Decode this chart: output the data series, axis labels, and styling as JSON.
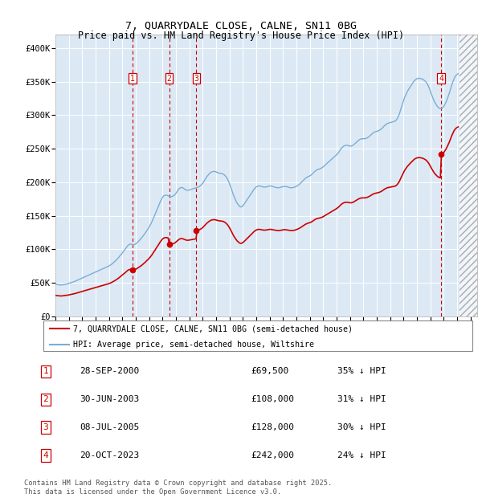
{
  "title": "7, QUARRYDALE CLOSE, CALNE, SN11 0BG",
  "subtitle": "Price paid vs. HM Land Registry's House Price Index (HPI)",
  "ylim": [
    0,
    420000
  ],
  "yticks": [
    0,
    50000,
    100000,
    150000,
    200000,
    250000,
    300000,
    350000,
    400000
  ],
  "ytick_labels": [
    "£0",
    "£50K",
    "£100K",
    "£150K",
    "£200K",
    "£250K",
    "£300K",
    "£350K",
    "£400K"
  ],
  "xlim_start": 1995.0,
  "xlim_end": 2026.5,
  "background_color": "#dce9f5",
  "hpi_color": "#7aadd4",
  "price_color": "#cc0000",
  "transactions": [
    {
      "label": "1",
      "year": 2000.75,
      "price": 69500
    },
    {
      "label": "2",
      "year": 2003.5,
      "price": 108000
    },
    {
      "label": "3",
      "year": 2005.53,
      "price": 128000
    },
    {
      "label": "4",
      "year": 2023.8,
      "price": 242000
    }
  ],
  "legend_line1": "7, QUARRYDALE CLOSE, CALNE, SN11 0BG (semi-detached house)",
  "legend_line2": "HPI: Average price, semi-detached house, Wiltshire",
  "table_rows": [
    {
      "num": "1",
      "date": "28-SEP-2000",
      "price": "£69,500",
      "hpi": "35% ↓ HPI"
    },
    {
      "num": "2",
      "date": "30-JUN-2003",
      "price": "£108,000",
      "hpi": "31% ↓ HPI"
    },
    {
      "num": "3",
      "date": "08-JUL-2005",
      "price": "£128,000",
      "hpi": "30% ↓ HPI"
    },
    {
      "num": "4",
      "date": "20-OCT-2023",
      "price": "£242,000",
      "hpi": "24% ↓ HPI"
    }
  ],
  "footer": "Contains HM Land Registry data © Crown copyright and database right 2025.\nThis data is licensed under the Open Government Licence v3.0.",
  "hpi_data": [
    [
      1995.0,
      48000
    ],
    [
      1995.08,
      47500
    ],
    [
      1995.17,
      47200
    ],
    [
      1995.25,
      47000
    ],
    [
      1995.33,
      46800
    ],
    [
      1995.42,
      46500
    ],
    [
      1995.5,
      46800
    ],
    [
      1995.58,
      47000
    ],
    [
      1995.67,
      47300
    ],
    [
      1995.75,
      47600
    ],
    [
      1995.83,
      48000
    ],
    [
      1995.92,
      48500
    ],
    [
      1996.0,
      49000
    ],
    [
      1996.08,
      49500
    ],
    [
      1996.17,
      50000
    ],
    [
      1996.25,
      50500
    ],
    [
      1996.33,
      51200
    ],
    [
      1996.42,
      51800
    ],
    [
      1996.5,
      52500
    ],
    [
      1996.58,
      53200
    ],
    [
      1996.67,
      54000
    ],
    [
      1996.75,
      54800
    ],
    [
      1996.83,
      55500
    ],
    [
      1996.92,
      56200
    ],
    [
      1997.0,
      57000
    ],
    [
      1997.08,
      57800
    ],
    [
      1997.17,
      58500
    ],
    [
      1997.25,
      59300
    ],
    [
      1997.33,
      60000
    ],
    [
      1997.42,
      60800
    ],
    [
      1997.5,
      61500
    ],
    [
      1997.58,
      62300
    ],
    [
      1997.67,
      63000
    ],
    [
      1997.75,
      63800
    ],
    [
      1997.83,
      64500
    ],
    [
      1997.92,
      65200
    ],
    [
      1998.0,
      66000
    ],
    [
      1998.08,
      66800
    ],
    [
      1998.17,
      67500
    ],
    [
      1998.25,
      68200
    ],
    [
      1998.33,
      69000
    ],
    [
      1998.42,
      69800
    ],
    [
      1998.5,
      70500
    ],
    [
      1998.58,
      71300
    ],
    [
      1998.67,
      72000
    ],
    [
      1998.75,
      72800
    ],
    [
      1998.83,
      73500
    ],
    [
      1998.92,
      74200
    ],
    [
      1999.0,
      75000
    ],
    [
      1999.08,
      76000
    ],
    [
      1999.17,
      77200
    ],
    [
      1999.25,
      78500
    ],
    [
      1999.33,
      80000
    ],
    [
      1999.42,
      81500
    ],
    [
      1999.5,
      83000
    ],
    [
      1999.58,
      84800
    ],
    [
      1999.67,
      86500
    ],
    [
      1999.75,
      88500
    ],
    [
      1999.83,
      90500
    ],
    [
      1999.92,
      92500
    ],
    [
      2000.0,
      94500
    ],
    [
      2000.08,
      96800
    ],
    [
      2000.17,
      99000
    ],
    [
      2000.25,
      101200
    ],
    [
      2000.33,
      103500
    ],
    [
      2000.42,
      105800
    ],
    [
      2000.5,
      107000
    ],
    [
      2000.58,
      107800
    ],
    [
      2000.67,
      107500
    ],
    [
      2000.75,
      107000
    ],
    [
      2000.83,
      106800
    ],
    [
      2000.92,
      107200
    ],
    [
      2001.0,
      108000
    ],
    [
      2001.08,
      109500
    ],
    [
      2001.17,
      111000
    ],
    [
      2001.25,
      112800
    ],
    [
      2001.33,
      114500
    ],
    [
      2001.42,
      116500
    ],
    [
      2001.5,
      118500
    ],
    [
      2001.58,
      120800
    ],
    [
      2001.67,
      123000
    ],
    [
      2001.75,
      125500
    ],
    [
      2001.83,
      128000
    ],
    [
      2001.92,
      130500
    ],
    [
      2002.0,
      133000
    ],
    [
      2002.08,
      136000
    ],
    [
      2002.17,
      139500
    ],
    [
      2002.25,
      143000
    ],
    [
      2002.33,
      147000
    ],
    [
      2002.42,
      151000
    ],
    [
      2002.5,
      155000
    ],
    [
      2002.58,
      159000
    ],
    [
      2002.67,
      163000
    ],
    [
      2002.75,
      167000
    ],
    [
      2002.83,
      171000
    ],
    [
      2002.92,
      174500
    ],
    [
      2003.0,
      177500
    ],
    [
      2003.08,
      179500
    ],
    [
      2003.17,
      180500
    ],
    [
      2003.25,
      180800
    ],
    [
      2003.33,
      180500
    ],
    [
      2003.42,
      179800
    ],
    [
      2003.5,
      179000
    ],
    [
      2003.58,
      178500
    ],
    [
      2003.67,
      178500
    ],
    [
      2003.75,
      179000
    ],
    [
      2003.83,
      180000
    ],
    [
      2003.92,
      181500
    ],
    [
      2004.0,
      183500
    ],
    [
      2004.08,
      186000
    ],
    [
      2004.17,
      188500
    ],
    [
      2004.25,
      190500
    ],
    [
      2004.33,
      191800
    ],
    [
      2004.42,
      192200
    ],
    [
      2004.5,
      191800
    ],
    [
      2004.58,
      190800
    ],
    [
      2004.67,
      189500
    ],
    [
      2004.75,
      188500
    ],
    [
      2004.83,
      188000
    ],
    [
      2004.92,
      188000
    ],
    [
      2005.0,
      188500
    ],
    [
      2005.08,
      189000
    ],
    [
      2005.17,
      189500
    ],
    [
      2005.25,
      190000
    ],
    [
      2005.33,
      190500
    ],
    [
      2005.42,
      191000
    ],
    [
      2005.5,
      191500
    ],
    [
      2005.58,
      192000
    ],
    [
      2005.67,
      192800
    ],
    [
      2005.75,
      193800
    ],
    [
      2005.83,
      195000
    ],
    [
      2005.92,
      196500
    ],
    [
      2006.0,
      198500
    ],
    [
      2006.08,
      201000
    ],
    [
      2006.17,
      203800
    ],
    [
      2006.25,
      206500
    ],
    [
      2006.33,
      209000
    ],
    [
      2006.42,
      211000
    ],
    [
      2006.5,
      213000
    ],
    [
      2006.58,
      214500
    ],
    [
      2006.67,
      215500
    ],
    [
      2006.75,
      216000
    ],
    [
      2006.83,
      216200
    ],
    [
      2006.92,
      216000
    ],
    [
      2007.0,
      215500
    ],
    [
      2007.08,
      214800
    ],
    [
      2007.17,
      214000
    ],
    [
      2007.25,
      213500
    ],
    [
      2007.33,
      213200
    ],
    [
      2007.42,
      213000
    ],
    [
      2007.5,
      212500
    ],
    [
      2007.58,
      211500
    ],
    [
      2007.67,
      210000
    ],
    [
      2007.75,
      208000
    ],
    [
      2007.83,
      205500
    ],
    [
      2007.92,
      202000
    ],
    [
      2008.0,
      198000
    ],
    [
      2008.08,
      193500
    ],
    [
      2008.17,
      188500
    ],
    [
      2008.25,
      183500
    ],
    [
      2008.33,
      179000
    ],
    [
      2008.42,
      175000
    ],
    [
      2008.5,
      171500
    ],
    [
      2008.58,
      168500
    ],
    [
      2008.67,
      166000
    ],
    [
      2008.75,
      164000
    ],
    [
      2008.83,
      163000
    ],
    [
      2008.92,
      163500
    ],
    [
      2009.0,
      165000
    ],
    [
      2009.08,
      167000
    ],
    [
      2009.17,
      169500
    ],
    [
      2009.25,
      172000
    ],
    [
      2009.33,
      174500
    ],
    [
      2009.42,
      177000
    ],
    [
      2009.5,
      179500
    ],
    [
      2009.58,
      182000
    ],
    [
      2009.67,
      184500
    ],
    [
      2009.75,
      187000
    ],
    [
      2009.83,
      189500
    ],
    [
      2009.92,
      191500
    ],
    [
      2010.0,
      193000
    ],
    [
      2010.08,
      194000
    ],
    [
      2010.17,
      194500
    ],
    [
      2010.25,
      194500
    ],
    [
      2010.33,
      194000
    ],
    [
      2010.42,
      193500
    ],
    [
      2010.5,
      193000
    ],
    [
      2010.58,
      192800
    ],
    [
      2010.67,
      192800
    ],
    [
      2010.75,
      193000
    ],
    [
      2010.83,
      193500
    ],
    [
      2010.92,
      194000
    ],
    [
      2011.0,
      194500
    ],
    [
      2011.08,
      194500
    ],
    [
      2011.17,
      194000
    ],
    [
      2011.25,
      193500
    ],
    [
      2011.33,
      193000
    ],
    [
      2011.42,
      192500
    ],
    [
      2011.5,
      192000
    ],
    [
      2011.58,
      191800
    ],
    [
      2011.67,
      191800
    ],
    [
      2011.75,
      192000
    ],
    [
      2011.83,
      192500
    ],
    [
      2011.92,
      193000
    ],
    [
      2012.0,
      193500
    ],
    [
      2012.08,
      193800
    ],
    [
      2012.17,
      193800
    ],
    [
      2012.25,
      193500
    ],
    [
      2012.33,
      193000
    ],
    [
      2012.42,
      192500
    ],
    [
      2012.5,
      192000
    ],
    [
      2012.58,
      191800
    ],
    [
      2012.67,
      191800
    ],
    [
      2012.75,
      192000
    ],
    [
      2012.83,
      192500
    ],
    [
      2012.92,
      193200
    ],
    [
      2013.0,
      194000
    ],
    [
      2013.08,
      195000
    ],
    [
      2013.17,
      196200
    ],
    [
      2013.25,
      197500
    ],
    [
      2013.33,
      199000
    ],
    [
      2013.42,
      200800
    ],
    [
      2013.5,
      202500
    ],
    [
      2013.58,
      204200
    ],
    [
      2013.67,
      205800
    ],
    [
      2013.75,
      207000
    ],
    [
      2013.83,
      208000
    ],
    [
      2013.92,
      208800
    ],
    [
      2014.0,
      209500
    ],
    [
      2014.08,
      210500
    ],
    [
      2014.17,
      212000
    ],
    [
      2014.25,
      213800
    ],
    [
      2014.33,
      215500
    ],
    [
      2014.42,
      217000
    ],
    [
      2014.5,
      218200
    ],
    [
      2014.58,
      219000
    ],
    [
      2014.67,
      219500
    ],
    [
      2014.75,
      220000
    ],
    [
      2014.83,
      220800
    ],
    [
      2014.92,
      221800
    ],
    [
      2015.0,
      223000
    ],
    [
      2015.08,
      224500
    ],
    [
      2015.17,
      226000
    ],
    [
      2015.25,
      227500
    ],
    [
      2015.33,
      229000
    ],
    [
      2015.42,
      230500
    ],
    [
      2015.5,
      232000
    ],
    [
      2015.58,
      233500
    ],
    [
      2015.67,
      235000
    ],
    [
      2015.75,
      236500
    ],
    [
      2015.83,
      238000
    ],
    [
      2015.92,
      239500
    ],
    [
      2016.0,
      241000
    ],
    [
      2016.08,
      242800
    ],
    [
      2016.17,
      245000
    ],
    [
      2016.25,
      247500
    ],
    [
      2016.33,
      250000
    ],
    [
      2016.42,
      252000
    ],
    [
      2016.5,
      253500
    ],
    [
      2016.58,
      254500
    ],
    [
      2016.67,
      255000
    ],
    [
      2016.75,
      255200
    ],
    [
      2016.83,
      255000
    ],
    [
      2016.92,
      254500
    ],
    [
      2017.0,
      254000
    ],
    [
      2017.08,
      254000
    ],
    [
      2017.17,
      254500
    ],
    [
      2017.25,
      255500
    ],
    [
      2017.33,
      257000
    ],
    [
      2017.42,
      258500
    ],
    [
      2017.5,
      260000
    ],
    [
      2017.58,
      261500
    ],
    [
      2017.67,
      263000
    ],
    [
      2017.75,
      264000
    ],
    [
      2017.83,
      264800
    ],
    [
      2017.92,
      265000
    ],
    [
      2018.0,
      265000
    ],
    [
      2018.08,
      265000
    ],
    [
      2018.17,
      265200
    ],
    [
      2018.25,
      265800
    ],
    [
      2018.33,
      266800
    ],
    [
      2018.42,
      268000
    ],
    [
      2018.5,
      269500
    ],
    [
      2018.58,
      271000
    ],
    [
      2018.67,
      272500
    ],
    [
      2018.75,
      273800
    ],
    [
      2018.83,
      274800
    ],
    [
      2018.92,
      275500
    ],
    [
      2019.0,
      276000
    ],
    [
      2019.08,
      276500
    ],
    [
      2019.17,
      277200
    ],
    [
      2019.25,
      278200
    ],
    [
      2019.33,
      279500
    ],
    [
      2019.42,
      281000
    ],
    [
      2019.5,
      282800
    ],
    [
      2019.58,
      284500
    ],
    [
      2019.67,
      286000
    ],
    [
      2019.75,
      287200
    ],
    [
      2019.83,
      288000
    ],
    [
      2019.92,
      288500
    ],
    [
      2020.0,
      289000
    ],
    [
      2020.08,
      289500
    ],
    [
      2020.17,
      290000
    ],
    [
      2020.25,
      290500
    ],
    [
      2020.33,
      291000
    ],
    [
      2020.42,
      292000
    ],
    [
      2020.5,
      294000
    ],
    [
      2020.58,
      297000
    ],
    [
      2020.67,
      301000
    ],
    [
      2020.75,
      306000
    ],
    [
      2020.83,
      311500
    ],
    [
      2020.92,
      317000
    ],
    [
      2021.0,
      322000
    ],
    [
      2021.08,
      326500
    ],
    [
      2021.17,
      330500
    ],
    [
      2021.25,
      334000
    ],
    [
      2021.33,
      337000
    ],
    [
      2021.42,
      340000
    ],
    [
      2021.5,
      342500
    ],
    [
      2021.58,
      345000
    ],
    [
      2021.67,
      347500
    ],
    [
      2021.75,
      350000
    ],
    [
      2021.83,
      352000
    ],
    [
      2021.92,
      353500
    ],
    [
      2022.0,
      354500
    ],
    [
      2022.08,
      355000
    ],
    [
      2022.17,
      355200
    ],
    [
      2022.25,
      355000
    ],
    [
      2022.33,
      354500
    ],
    [
      2022.42,
      353800
    ],
    [
      2022.5,
      352800
    ],
    [
      2022.58,
      351500
    ],
    [
      2022.67,
      349800
    ],
    [
      2022.75,
      347500
    ],
    [
      2022.83,
      344500
    ],
    [
      2022.92,
      340500
    ],
    [
      2023.0,
      336000
    ],
    [
      2023.08,
      331500
    ],
    [
      2023.17,
      327000
    ],
    [
      2023.25,
      323000
    ],
    [
      2023.33,
      319500
    ],
    [
      2023.42,
      316500
    ],
    [
      2023.5,
      314000
    ],
    [
      2023.58,
      312000
    ],
    [
      2023.67,
      310500
    ],
    [
      2023.75,
      309800
    ],
    [
      2023.83,
      310000
    ],
    [
      2023.92,
      311000
    ],
    [
      2024.0,
      313000
    ],
    [
      2024.08,
      316000
    ],
    [
      2024.17,
      319500
    ],
    [
      2024.25,
      323500
    ],
    [
      2024.33,
      328000
    ],
    [
      2024.42,
      333000
    ],
    [
      2024.5,
      338500
    ],
    [
      2024.58,
      344000
    ],
    [
      2024.67,
      349000
    ],
    [
      2024.75,
      353500
    ],
    [
      2024.83,
      357000
    ],
    [
      2024.92,
      359500
    ],
    [
      2025.0,
      361000
    ],
    [
      2025.08,
      362000
    ]
  ]
}
